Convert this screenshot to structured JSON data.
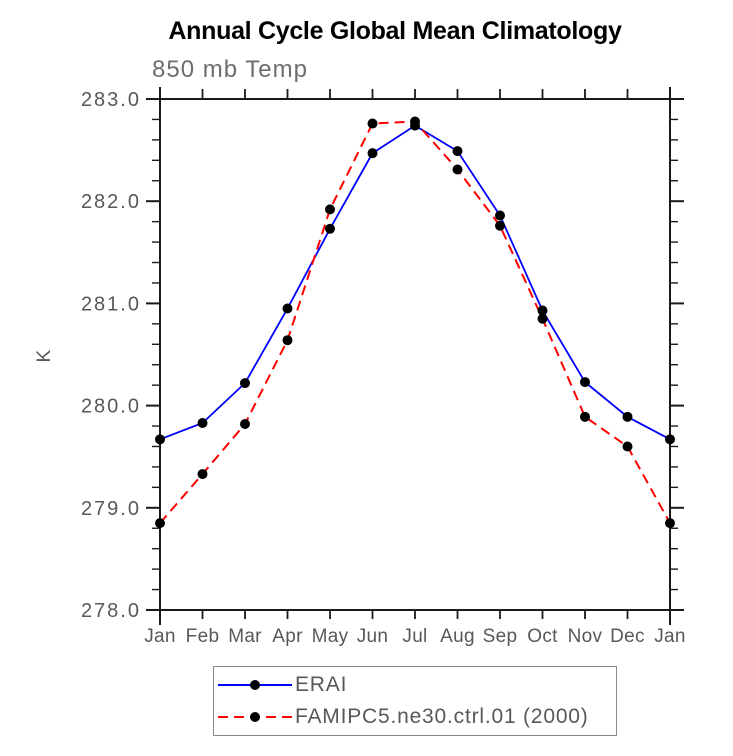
{
  "chart_data": {
    "type": "line",
    "title": "Annual Cycle Global Mean Climatology",
    "subtitle": "850 mb Temp",
    "ylabel": "K",
    "xlabel": "",
    "x_categories": [
      "Jan",
      "Feb",
      "Mar",
      "Apr",
      "May",
      "Jun",
      "Jul",
      "Aug",
      "Sep",
      "Oct",
      "Nov",
      "Dec",
      "Jan"
    ],
    "ylim": [
      278.0,
      283.0
    ],
    "y_tick_labels": [
      "278.0",
      "279.0",
      "280.0",
      "281.0",
      "282.0",
      "283.0"
    ],
    "y_minor_tick_step": 0.2,
    "grid": false,
    "legend_position": "bottom-center",
    "axis_color": "#1a1a1a",
    "text_color": "#585858",
    "series": [
      {
        "name": "ERAI",
        "color": "#0000ff",
        "line_style": "solid",
        "marker": "filled-circle",
        "marker_color": "#000000",
        "values": [
          279.67,
          279.83,
          280.22,
          280.95,
          281.73,
          282.47,
          282.74,
          282.49,
          281.86,
          280.93,
          280.23,
          279.89,
          279.67
        ]
      },
      {
        "name": "FAMIPC5.ne30.ctrl.01 (2000)",
        "color": "#ff0000",
        "line_style": "dashed",
        "marker": "filled-circle",
        "marker_color": "#000000",
        "values": [
          278.85,
          279.33,
          279.82,
          280.64,
          281.92,
          282.76,
          282.78,
          282.31,
          281.76,
          280.85,
          279.89,
          279.6,
          278.85
        ]
      }
    ]
  }
}
